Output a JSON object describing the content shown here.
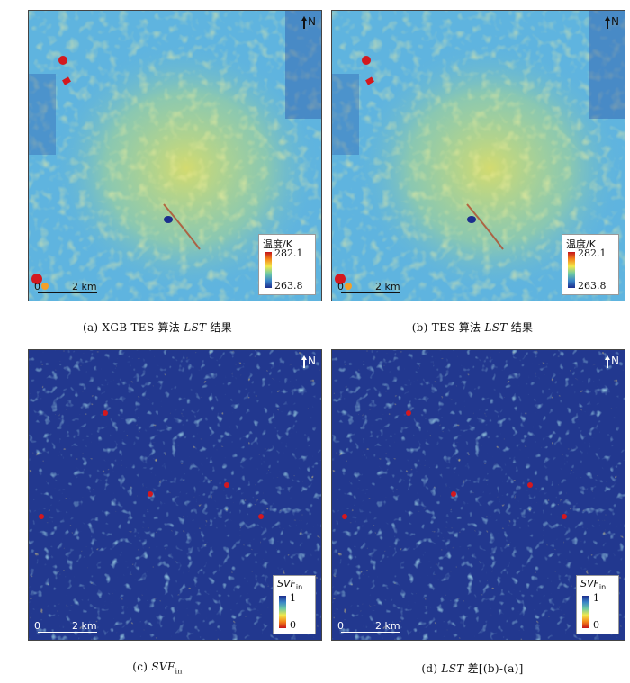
{
  "panels": [
    {
      "id": "a",
      "north": "N",
      "scale": {
        "start": "0",
        "end": "2 km"
      },
      "legend": {
        "title": "温度/K",
        "max": "282.1",
        "min": "263.8"
      },
      "caption": {
        "prefix": "(a) XGB-TES 算法 ",
        "italic": "LST",
        "suffix": " 结果"
      }
    },
    {
      "id": "b",
      "north": "N",
      "scale": {
        "start": "0",
        "end": "2 km"
      },
      "legend": {
        "title": "温度/K",
        "max": "282.1",
        "min": "263.8"
      },
      "caption": {
        "prefix": "(b) TES 算法 ",
        "italic": "LST",
        "suffix": " 结果"
      }
    },
    {
      "id": "c",
      "north": "N",
      "scale": {
        "start": "0",
        "end": "2 km"
      },
      "legend": {
        "title": "SVF",
        "title_sub": "in",
        "max": "1",
        "min": "0"
      },
      "caption": {
        "prefix": "(c) ",
        "italic": "SVF",
        "sub": "in",
        "suffix": ""
      }
    },
    {
      "id": "d",
      "north": "N",
      "scale": {
        "start": "0",
        "end": "2 km"
      },
      "legend": {
        "title": "SVF",
        "title_sub": "in",
        "max": "1",
        "min": "0"
      },
      "caption": {
        "prefix": "(d) ",
        "italic": "LST",
        "suffix": " 差[(b)-(a)]"
      }
    }
  ],
  "colors": {
    "lst_base": "#5fb4df",
    "lst_warm": "#e3e15a",
    "svf_base": "#22388f",
    "hot": "#d4181e",
    "cold": "#1c2e8e"
  }
}
